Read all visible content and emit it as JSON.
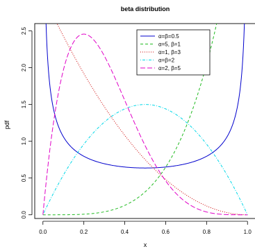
{
  "chart_data": {
    "type": "line",
    "title": "beta distribution",
    "xlabel": "x",
    "ylabel": "pdf",
    "xlim": [
      -0.04,
      1.04
    ],
    "ylim": [
      -0.05,
      2.6
    ],
    "x_ticks": [
      "0.0",
      "0.2",
      "0.4",
      "0.6",
      "0.8",
      "1.0"
    ],
    "y_ticks": [
      "0.0",
      "0.5",
      "1.0",
      "1.5",
      "2.0",
      "2.5"
    ],
    "grid": false,
    "legend_position": "top-right",
    "series": [
      {
        "name": "α=β=0.5",
        "alpha": 0.5,
        "beta": 0.5,
        "color": "#0000cd",
        "dash": "solid"
      },
      {
        "name": "α=5, β=1",
        "alpha": 5,
        "beta": 1,
        "color": "#22bb22",
        "dash": "dashed"
      },
      {
        "name": "α=1, β=3",
        "alpha": 1,
        "beta": 3,
        "color": "#cc0000",
        "dash": "dotted"
      },
      {
        "name": "α=β=2",
        "alpha": 2,
        "beta": 2,
        "color": "#00d8e8",
        "dash": "dotdash"
      },
      {
        "name": "α=2, β=5",
        "alpha": 2,
        "beta": 5,
        "color": "#e000c8",
        "dash": "longdash"
      }
    ]
  }
}
